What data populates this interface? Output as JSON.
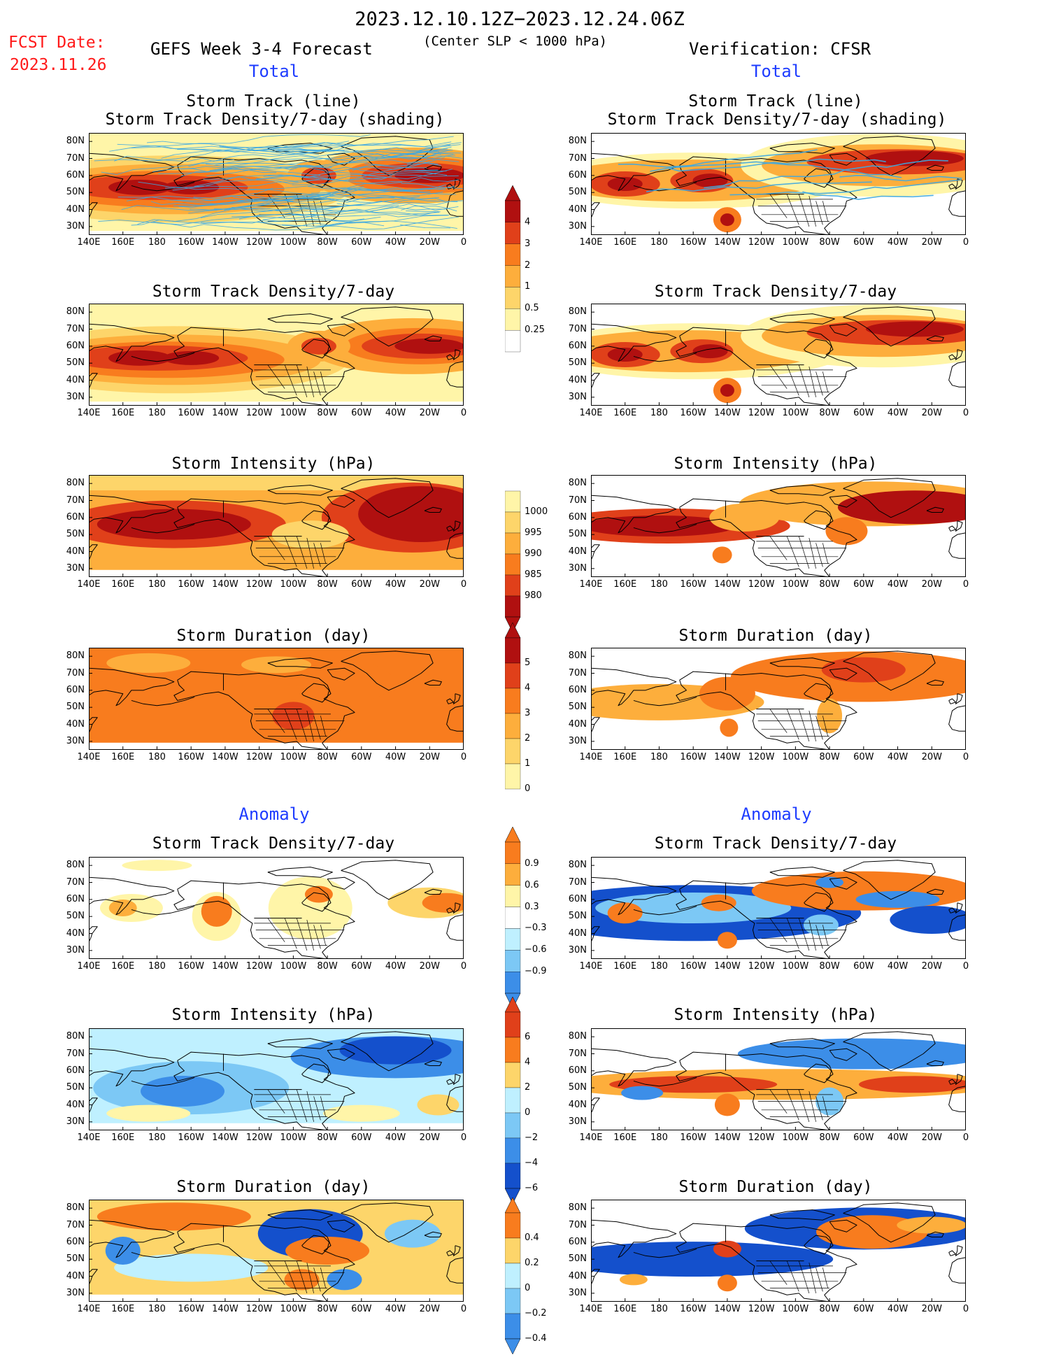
{
  "header": {
    "date_range": "2023.12.10.12Z−2023.12.24.06Z",
    "fcst_label": "FCST Date:",
    "fcst_date": "2023.11.26",
    "forecast_title": "GEFS Week 3-4 Forecast",
    "criterion": "(Center SLP < 1000 hPa)",
    "verification": "Verification: CFSR",
    "left_section": "Total",
    "right_section": "Total",
    "left_anomaly": "Anomaly",
    "right_anomaly": "Anomaly"
  },
  "axes": {
    "lon_labels": [
      "140E",
      "160E",
      "180",
      "160W",
      "140W",
      "120W",
      "100W",
      "80W",
      "60W",
      "40W",
      "20W",
      "0"
    ],
    "lat_labels": [
      "80N",
      "70N",
      "60N",
      "50N",
      "40N",
      "30N"
    ]
  },
  "titles": {
    "track_line": "Storm Track (line)",
    "track_shading": "Storm Track Density/7-day (shading)",
    "density": "Storm Track Density/7-day",
    "intensity": "Storm Intensity (hPa)",
    "duration": "Storm Duration (day)"
  },
  "colorbars": {
    "density": [
      "4",
      "3",
      "2",
      "1",
      "0.5",
      "0.25"
    ],
    "intensity": [
      "1000",
      "995",
      "990",
      "985",
      "980"
    ],
    "duration": [
      "5",
      "4",
      "3",
      "2",
      "1",
      "0"
    ],
    "density_anom": [
      "0.9",
      "0.6",
      "0.3",
      "−0.3",
      "−0.6",
      "−0.9"
    ],
    "intensity_anom": [
      "6",
      "4",
      "2",
      "0",
      "−2",
      "−4",
      "−6"
    ],
    "duration_anom": [
      "0.4",
      "0.2",
      "0",
      "−0.2",
      "−0.4"
    ]
  },
  "colors": {
    "warm": [
      "#fff5a8",
      "#fdd56a",
      "#fdae3c",
      "#f87c1e",
      "#e0401a",
      "#b01010"
    ],
    "cool": [
      "#bff0ff",
      "#7cc8f5",
      "#3c8ee8",
      "#1450cc"
    ],
    "track_line": "#3ea8e0",
    "title_blue": "#1e3cff",
    "fcst_red": "#ff1a1a"
  }
}
